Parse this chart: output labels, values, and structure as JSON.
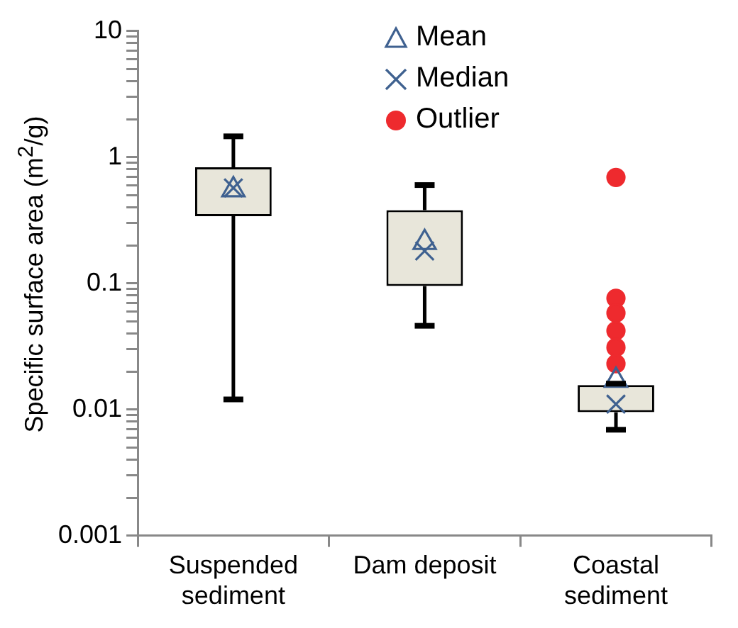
{
  "chart_data": {
    "type": "box",
    "ylabel": "Specific surface area (m$^{2}$/g)",
    "categories": [
      "Suspended sediment",
      "Dam deposit",
      "Coastal sediment"
    ],
    "color": "#e8e6da",
    "log": "y",
    "ylim": [
      0.001,
      10
    ],
    "yticks": [
      0.001,
      {
        "value": 0.002,
        "label": null
      },
      {
        "value": 0.003,
        "label": null
      },
      {
        "value": 0.004,
        "label": null
      },
      {
        "value": 0.005,
        "label": null
      },
      {
        "value": 0.006,
        "label": null
      },
      {
        "value": 0.007,
        "label": null
      },
      {
        "value": 0.008,
        "label": null
      },
      {
        "value": 0.009,
        "label": null
      },
      0.01,
      {
        "value": 0.02,
        "label": null
      },
      {
        "value": 0.03,
        "label": null
      },
      {
        "value": 0.04,
        "label": null
      },
      {
        "value": 0.05,
        "label": null
      },
      {
        "value": 0.06,
        "label": null
      },
      {
        "value": 0.07,
        "label": null
      },
      {
        "value": 0.08,
        "label": null
      },
      {
        "value": 0.09,
        "label": null
      },
      0.1,
      {
        "value": 0.2,
        "label": null
      },
      {
        "value": 0.3,
        "label": null
      },
      {
        "value": 0.4,
        "label": null
      },
      {
        "value": 0.5,
        "label": null
      },
      {
        "value": 0.6,
        "label": null
      },
      {
        "value": 0.7,
        "label": null
      },
      {
        "value": 0.8,
        "label": null
      },
      {
        "value": 0.9,
        "label": null
      },
      1,
      {
        "value": 2,
        "label": null
      },
      {
        "value": 3,
        "label": null
      },
      {
        "value": 4,
        "label": null
      },
      {
        "value": 5,
        "label": null
      },
      {
        "value": 6,
        "label": null
      },
      {
        "value": 7,
        "label": null
      },
      {
        "value": 8,
        "label": null
      },
      {
        "value": 9,
        "label": null
      },
      10
    ],
    "boxes": [
      {
        "low": 0.012,
        "q1": 0.34,
        "q3": 0.83,
        "high": 1.46
      },
      {
        "low": 0.046,
        "q1": 0.095,
        "q3": 0.38,
        "high": 0.6
      },
      {
        "low": 0.0069,
        "q1": 0.0095,
        "q3": 0.0156,
        "high": 0.016
      }
    ],
    "series": [
      {
        "name": "Mean",
        "type": "scatter",
        "marker": "triangle",
        "color": "#3f6190",
        "x": [
          "Suspended sediment",
          "Dam deposit",
          "Coastal sediment"
        ],
        "values": [
          0.55,
          0.21,
          0.017
        ]
      },
      {
        "name": "Median",
        "type": "scatter",
        "marker": "cross",
        "color": "#3f6190",
        "x": [
          "Suspended sediment",
          "Dam deposit",
          "Coastal sediment"
        ],
        "values": [
          0.57,
          0.18,
          0.011
        ]
      },
      {
        "name": "Outlier",
        "type": "scatter",
        "marker": "circle",
        "color": "#ee2a2e",
        "x": [
          "Coastal sediment",
          "Coastal sediment",
          "Coastal sediment",
          "Coastal sediment",
          "Coastal sediment",
          "Coastal sediment"
        ],
        "values": [
          0.69,
          0.076,
          0.058,
          0.042,
          0.031,
          0.023
        ]
      }
    ],
    "legend": "top",
    "grid": false
  }
}
